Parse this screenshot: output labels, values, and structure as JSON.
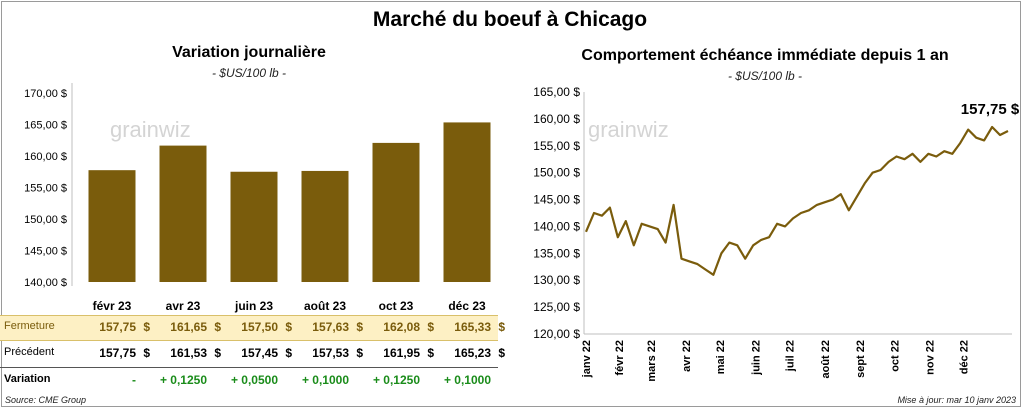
{
  "title": "Marché du boeuf à Chicago",
  "brand": "grainwiz",
  "left": {
    "title": "Variation  journalière",
    "unit": "- $US/100 lb -"
  },
  "right": {
    "title": "Comportement  échéance immédiate depuis 1 an",
    "unit": "- $US/100 lb -",
    "last_value_label": "157,75 $"
  },
  "table": {
    "fermeture_label": "Fermeture",
    "precedent_label": "Précédent",
    "variation_label": "Variation",
    "currency": "$",
    "fermeture": [
      "157,75",
      "161,65",
      "157,50",
      "157,63",
      "162,08",
      "165,33"
    ],
    "precedent": [
      "157,75",
      "161,53",
      "157,45",
      "157,53",
      "161,95",
      "165,23"
    ],
    "variation": [
      "-",
      "+ 0,1250",
      "+ 0,0500",
      "+ 0,1000",
      "+ 0,1250",
      "+ 0,1000"
    ]
  },
  "footer": {
    "source": "Source: CME Group",
    "update": "Mise à jour: mar 10 janv 2023"
  },
  "colors": {
    "bar": "#7a5c0c",
    "line": "#7a5c0c",
    "fermeture_band": "#fdf0c4",
    "variation_text": "#1a8c1a"
  },
  "chart_data": [
    {
      "type": "bar",
      "categories": [
        "févr 23",
        "avr 23",
        "juin 23",
        "août 23",
        "oct 23",
        "déc 23"
      ],
      "values": [
        157.75,
        161.65,
        157.5,
        157.63,
        162.08,
        165.33
      ],
      "ylim": [
        140,
        170
      ],
      "yticks": [
        "140,00 $",
        "145,00 $",
        "150,00 $",
        "155,00 $",
        "160,00 $",
        "165,00 $",
        "170,00 $"
      ],
      "grid": false,
      "legend": "none"
    },
    {
      "type": "line",
      "ylim": [
        120,
        165
      ],
      "yticks": [
        "120,00 $",
        "125,00 $",
        "130,00 $",
        "135,00 $",
        "140,00 $",
        "145,00 $",
        "150,00 $",
        "155,00 $",
        "160,00 $",
        "165,00 $"
      ],
      "xticks": [
        "janv 22",
        "févr 22",
        "mars 22",
        "avr 22",
        "mai 22",
        "juin 22",
        "juil 22",
        "août 22",
        "sept 22",
        "oct 22",
        "nov 22",
        "déc 22"
      ],
      "grid": false,
      "legend": "none",
      "x": [
        "2022-01-03",
        "2022-01-10",
        "2022-01-17",
        "2022-01-24",
        "2022-01-31",
        "2022-02-07",
        "2022-02-14",
        "2022-02-21",
        "2022-02-28",
        "2022-03-07",
        "2022-03-14",
        "2022-03-21",
        "2022-03-28",
        "2022-04-04",
        "2022-04-11",
        "2022-04-18",
        "2022-04-25",
        "2022-05-02",
        "2022-05-09",
        "2022-05-16",
        "2022-05-23",
        "2022-05-30",
        "2022-06-06",
        "2022-06-13",
        "2022-06-20",
        "2022-06-27",
        "2022-07-04",
        "2022-07-11",
        "2022-07-18",
        "2022-07-25",
        "2022-08-01",
        "2022-08-08",
        "2022-08-15",
        "2022-08-22",
        "2022-08-29",
        "2022-09-05",
        "2022-09-12",
        "2022-09-19",
        "2022-09-26",
        "2022-10-03",
        "2022-10-10",
        "2022-10-17",
        "2022-10-24",
        "2022-10-31",
        "2022-11-07",
        "2022-11-14",
        "2022-11-21",
        "2022-11-28",
        "2022-12-05",
        "2022-12-12",
        "2022-12-19",
        "2022-12-26",
        "2023-01-02",
        "2023-01-09"
      ],
      "y": [
        139.0,
        142.5,
        142.0,
        143.5,
        138.0,
        141.0,
        136.5,
        140.5,
        140.0,
        139.5,
        137.0,
        144.0,
        134.0,
        133.5,
        133.0,
        132.0,
        131.0,
        135.0,
        137.0,
        136.5,
        134.0,
        136.5,
        137.5,
        138.0,
        140.5,
        140.0,
        141.5,
        142.5,
        143.0,
        144.0,
        144.5,
        145.0,
        146.0,
        143.0,
        145.5,
        148.0,
        150.0,
        150.5,
        152.0,
        153.0,
        152.5,
        153.5,
        152.0,
        153.5,
        153.0,
        154.0,
        153.5,
        155.5,
        158.0,
        156.5,
        156.0,
        158.5,
        157.0,
        157.75
      ]
    }
  ]
}
